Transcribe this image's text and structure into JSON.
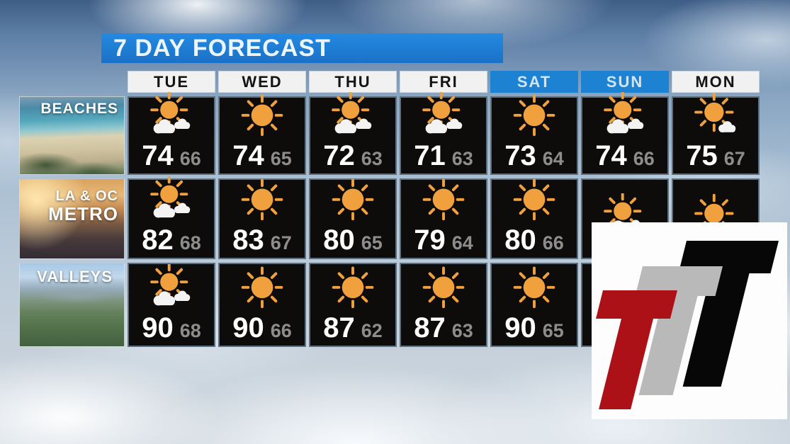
{
  "title": "7 DAY FORECAST",
  "days": [
    {
      "label": "TUE",
      "weekend": false
    },
    {
      "label": "WED",
      "weekend": false
    },
    {
      "label": "THU",
      "weekend": false
    },
    {
      "label": "FRI",
      "weekend": false
    },
    {
      "label": "SAT",
      "weekend": true
    },
    {
      "label": "SUN",
      "weekend": true
    },
    {
      "label": "MON",
      "weekend": false
    }
  ],
  "regions": [
    {
      "name": "BEACHES",
      "name_lines": [
        "BEACHES"
      ],
      "photo": "beach",
      "cells": [
        {
          "icon": "partly-cloudy",
          "high": "74",
          "low": "66"
        },
        {
          "icon": "sunny",
          "high": "74",
          "low": "65"
        },
        {
          "icon": "partly-cloudy",
          "high": "72",
          "low": "63"
        },
        {
          "icon": "partly-cloudy",
          "high": "71",
          "low": "63"
        },
        {
          "icon": "sunny",
          "high": "73",
          "low": "64"
        },
        {
          "icon": "partly-cloudy",
          "high": "74",
          "low": "66"
        },
        {
          "icon": "mostly-sunny",
          "high": "75",
          "low": "67"
        }
      ]
    },
    {
      "name": "LA & OC METRO",
      "name_lines": [
        "LA & OC",
        "METRO"
      ],
      "photo": "metro",
      "cells": [
        {
          "icon": "partly-cloudy",
          "high": "82",
          "low": "68"
        },
        {
          "icon": "sunny",
          "high": "83",
          "low": "67"
        },
        {
          "icon": "sunny",
          "high": "80",
          "low": "65"
        },
        {
          "icon": "sunny",
          "high": "79",
          "low": "64"
        },
        {
          "icon": "sunny",
          "high": "80",
          "low": "66"
        },
        {
          "icon": "partly-cloudy",
          "high": null,
          "low": null
        },
        {
          "icon": "mostly-sunny",
          "high": null,
          "low": null
        }
      ]
    },
    {
      "name": "VALLEYS",
      "name_lines": [
        "VALLEYS"
      ],
      "photo": "valleys",
      "cells": [
        {
          "icon": "partly-cloudy",
          "high": "90",
          "low": "68"
        },
        {
          "icon": "sunny",
          "high": "90",
          "low": "66"
        },
        {
          "icon": "sunny",
          "high": "87",
          "low": "62"
        },
        {
          "icon": "sunny",
          "high": "87",
          "low": "63"
        },
        {
          "icon": "sunny",
          "high": "90",
          "low": "65"
        },
        {
          "icon": null,
          "high": null,
          "low": null
        },
        {
          "icon": null,
          "high": null,
          "low": null
        }
      ]
    }
  ],
  "logo": {
    "letters": [
      "T",
      "T",
      "T"
    ],
    "colors": [
      "#ab1117",
      "#b9b9b9",
      "#070707"
    ]
  },
  "colors": {
    "title_bar": "#1f7fd6",
    "header_bg": "#f1f1f1",
    "weekend_header_bg": "#1e82d2",
    "weekend_header_text": "#cfe6f8",
    "cell_bg": "#0d0c0b",
    "sun": "#f0a13d",
    "cloud": "#f3f3f3",
    "high_temp": "#ffffff",
    "low_temp": "#8d8d8d"
  },
  "chart_data": {
    "type": "table",
    "title": "7 DAY FORECAST",
    "columns": [
      "TUE",
      "WED",
      "THU",
      "FRI",
      "SAT",
      "SUN",
      "MON"
    ],
    "rows": [
      {
        "region": "BEACHES",
        "high": [
          74,
          74,
          72,
          71,
          73,
          74,
          75
        ],
        "low": [
          66,
          65,
          63,
          63,
          64,
          66,
          67
        ],
        "conditions": [
          "partly-cloudy",
          "sunny",
          "partly-cloudy",
          "partly-cloudy",
          "sunny",
          "partly-cloudy",
          "mostly-sunny"
        ]
      },
      {
        "region": "LA & OC METRO",
        "high": [
          82,
          83,
          80,
          79,
          80,
          null,
          null
        ],
        "low": [
          68,
          67,
          65,
          64,
          66,
          null,
          null
        ],
        "conditions": [
          "partly-cloudy",
          "sunny",
          "sunny",
          "sunny",
          "sunny",
          "partly-cloudy",
          "mostly-sunny"
        ]
      },
      {
        "region": "VALLEYS",
        "high": [
          90,
          90,
          87,
          87,
          90,
          null,
          null
        ],
        "low": [
          68,
          66,
          62,
          63,
          65,
          null,
          null
        ],
        "conditions": [
          "partly-cloudy",
          "sunny",
          "sunny",
          "sunny",
          "sunny",
          null,
          null
        ]
      }
    ]
  }
}
